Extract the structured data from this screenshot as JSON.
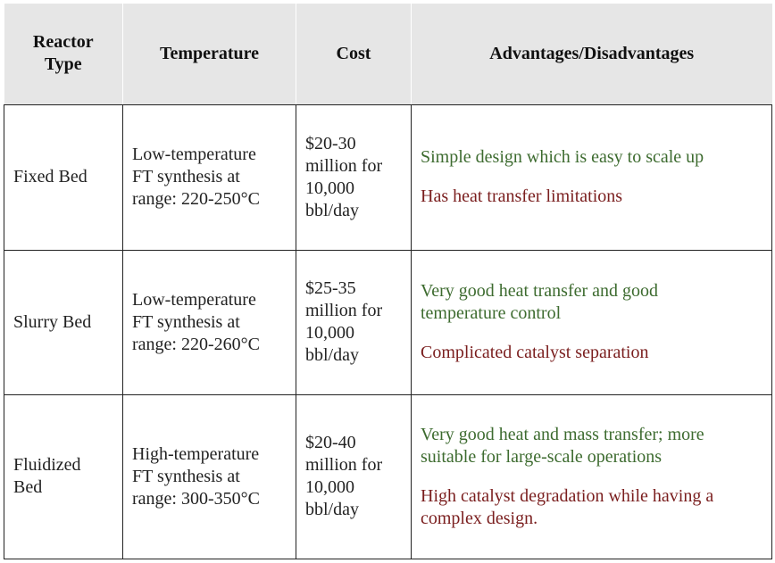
{
  "table": {
    "headers": [
      [
        "Reactor",
        "Type"
      ],
      [
        "Temperature"
      ],
      [
        "Cost"
      ],
      [
        "Advantages/Disadvantages"
      ]
    ],
    "rows": [
      {
        "type": [
          "Fixed Bed"
        ],
        "temperature": [
          "Low-temperature",
          "FT synthesis at",
          "range: 220-250°C"
        ],
        "cost": [
          "$20-30",
          "million for",
          "10,000",
          "bbl/day"
        ],
        "advantage": [
          "Simple design which is easy to scale up"
        ],
        "disadvantage": [
          "Has heat transfer limitations"
        ]
      },
      {
        "type": [
          "Slurry Bed"
        ],
        "temperature": [
          "Low-temperature",
          "FT synthesis at",
          "range: 220-260°C"
        ],
        "cost": [
          "$25-35",
          "million for",
          "10,000",
          "bbl/day"
        ],
        "advantage": [
          "Very good heat transfer and good",
          "temperature control"
        ],
        "disadvantage": [
          "Complicated catalyst separation"
        ]
      },
      {
        "type": [
          "Fluidized",
          "Bed"
        ],
        "temperature": [
          "High-temperature",
          "FT synthesis at",
          "range: 300-350°C"
        ],
        "cost": [
          "$20-40",
          "million for",
          "10,000",
          "bbl/day"
        ],
        "advantage": [
          "Very good heat and mass transfer; more",
          "suitable for large-scale operations"
        ],
        "disadvantage": [
          "High catalyst degradation while having a",
          "complex design."
        ]
      }
    ]
  },
  "colors": {
    "header_bg": "#e6e6e6",
    "advantage_text": "#3d6b2f",
    "disadvantage_text": "#7a1e1e",
    "border": "#222222"
  }
}
